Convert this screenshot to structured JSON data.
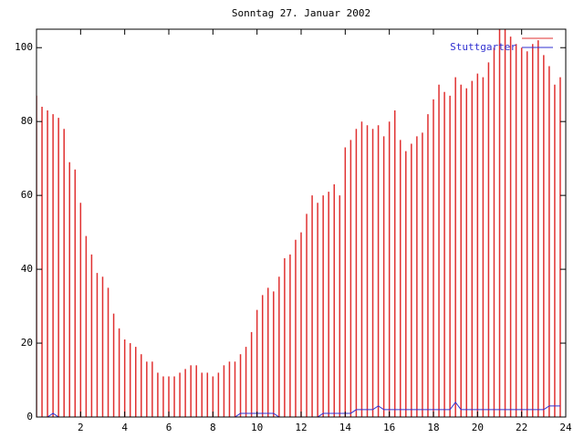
{
  "chart_data": {
    "type": "line",
    "title": "Sonntag 27. Januar 2002",
    "x": [
      0,
      0.25,
      0.5,
      0.75,
      1,
      1.25,
      1.5,
      1.75,
      2,
      2.25,
      2.5,
      2.75,
      3,
      3.25,
      3.5,
      3.75,
      4,
      4.25,
      4.5,
      4.75,
      5,
      5.25,
      5.5,
      5.75,
      6,
      6.25,
      6.5,
      6.75,
      7,
      7.25,
      7.5,
      7.75,
      8,
      8.25,
      8.5,
      8.75,
      9,
      9.25,
      9.5,
      9.75,
      10,
      10.25,
      10.5,
      10.75,
      11,
      11.25,
      11.5,
      11.75,
      12,
      12.25,
      12.5,
      12.75,
      13,
      13.25,
      13.5,
      13.75,
      14,
      14.25,
      14.5,
      14.75,
      15,
      15.25,
      15.5,
      15.75,
      16,
      16.25,
      16.5,
      16.75,
      17,
      17.25,
      17.5,
      17.75,
      18,
      18.25,
      18.5,
      18.75,
      19,
      19.25,
      19.5,
      19.75,
      20,
      20.25,
      20.5,
      20.75,
      21,
      21.25,
      21.5,
      21.75,
      22,
      22.25,
      22.5,
      22.75,
      23,
      23.25,
      23.5,
      23.75
    ],
    "series": [
      {
        "color": "#e03030",
        "style": "impulses",
        "values": [
          87,
          84,
          83,
          82,
          81,
          78,
          69,
          67,
          58,
          49,
          44,
          39,
          38,
          35,
          28,
          24,
          21,
          20,
          19,
          17,
          15,
          15,
          12,
          11,
          11,
          11,
          12,
          13,
          14,
          14,
          12,
          12,
          11,
          12,
          14,
          15,
          15,
          17,
          19,
          23,
          29,
          33,
          35,
          34,
          38,
          43,
          44,
          48,
          50,
          55,
          60,
          58,
          60,
          61,
          63,
          60,
          73,
          75,
          78,
          80,
          79,
          78,
          79,
          76,
          80,
          83,
          75,
          72,
          74,
          76,
          77,
          82,
          86,
          90,
          88,
          87,
          92,
          90,
          89,
          91,
          93,
          92,
          96,
          100,
          106,
          106,
          103,
          101,
          100,
          99,
          101,
          102,
          98,
          95,
          90,
          92
        ]
      },
      {
        "name": "Stuttgarter",
        "color": "#3030d0",
        "style": "lines",
        "values": [
          0,
          0,
          0,
          1,
          0,
          0,
          0,
          0,
          0,
          0,
          0,
          0,
          0,
          0,
          0,
          0,
          0,
          0,
          0,
          0,
          0,
          0,
          0,
          0,
          0,
          0,
          0,
          0,
          0,
          0,
          0,
          0,
          0,
          0,
          0,
          0,
          0,
          1,
          1,
          1,
          1,
          1,
          1,
          1,
          0,
          0,
          0,
          0,
          0,
          0,
          0,
          0,
          1,
          1,
          1,
          1,
          1,
          1,
          2,
          2,
          2,
          2,
          3,
          2,
          2,
          2,
          2,
          2,
          2,
          2,
          2,
          2,
          2,
          2,
          2,
          2,
          4,
          2,
          2,
          2,
          2,
          2,
          2,
          2,
          2,
          2,
          2,
          2,
          2,
          2,
          2,
          2,
          2,
          3,
          3,
          3
        ]
      }
    ],
    "xlim": [
      0,
      24
    ],
    "xticks": [
      2,
      4,
      6,
      8,
      10,
      12,
      14,
      16,
      18,
      20,
      22,
      24
    ],
    "ylim": [
      0,
      105
    ],
    "yticks": [
      0,
      20,
      40,
      60,
      80,
      100
    ],
    "legend": "top-right"
  }
}
